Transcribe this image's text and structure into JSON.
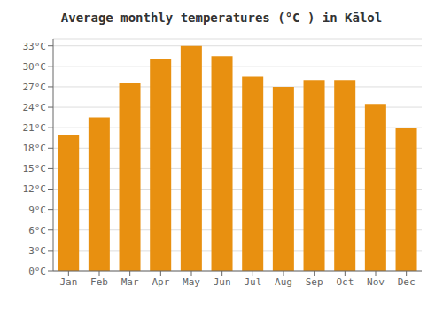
{
  "chart_data": {
    "type": "bar",
    "title": "Average monthly temperatures (°C ) in Kālol",
    "categories": [
      "Jan",
      "Feb",
      "Mar",
      "Apr",
      "May",
      "Jun",
      "Jul",
      "Aug",
      "Sep",
      "Oct",
      "Nov",
      "Dec"
    ],
    "values": [
      20.0,
      22.5,
      27.5,
      31.0,
      33.0,
      31.5,
      28.5,
      27.0,
      28.0,
      28.0,
      24.5,
      21.0
    ],
    "color": "#E89010",
    "ylim": [
      0,
      34
    ],
    "yticks": [
      {
        "value": 0,
        "label": "0°C"
      },
      {
        "value": 3,
        "label": "3°C"
      },
      {
        "value": 6,
        "label": "6°C"
      },
      {
        "value": 9,
        "label": "9°C"
      },
      {
        "value": 12,
        "label": "12°C"
      },
      {
        "value": 15,
        "label": "15°C"
      },
      {
        "value": 18,
        "label": "18°C"
      },
      {
        "value": 21,
        "label": "21°C"
      },
      {
        "value": 24,
        "label": "24°C"
      },
      {
        "value": 27,
        "label": "27°C"
      },
      {
        "value": 30,
        "label": "30°C"
      },
      {
        "value": 33,
        "label": "33°C"
      }
    ],
    "grid": true
  }
}
